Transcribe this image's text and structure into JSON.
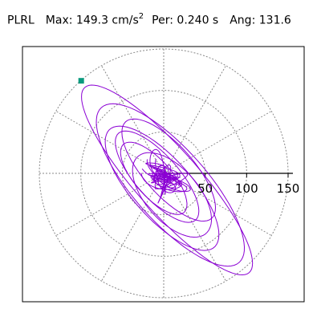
{
  "header": {
    "station": "PLRL",
    "max_label": "Max:",
    "max_value": "149.3 cm/s",
    "max_sup": "2",
    "per_label": "Per:",
    "per_value": "0.240 s",
    "ang_label": "Ang:",
    "ang_value": "131.6"
  },
  "chart_data": {
    "type": "polar-particle-motion",
    "title": "PLRL",
    "max_amplitude": 149.3,
    "units": "cm/s^2",
    "period_s": 0.24,
    "angle_deg": 131.6,
    "radial_ticks": [
      50,
      100,
      150
    ],
    "tick_labels": [
      "50",
      "100",
      "150"
    ],
    "radial_max": 150,
    "grid": true,
    "trace_color": "#8b00d4",
    "marker_color": "#0a9a7e",
    "peak_point": {
      "x": -99.5,
      "y": 111.6
    }
  }
}
